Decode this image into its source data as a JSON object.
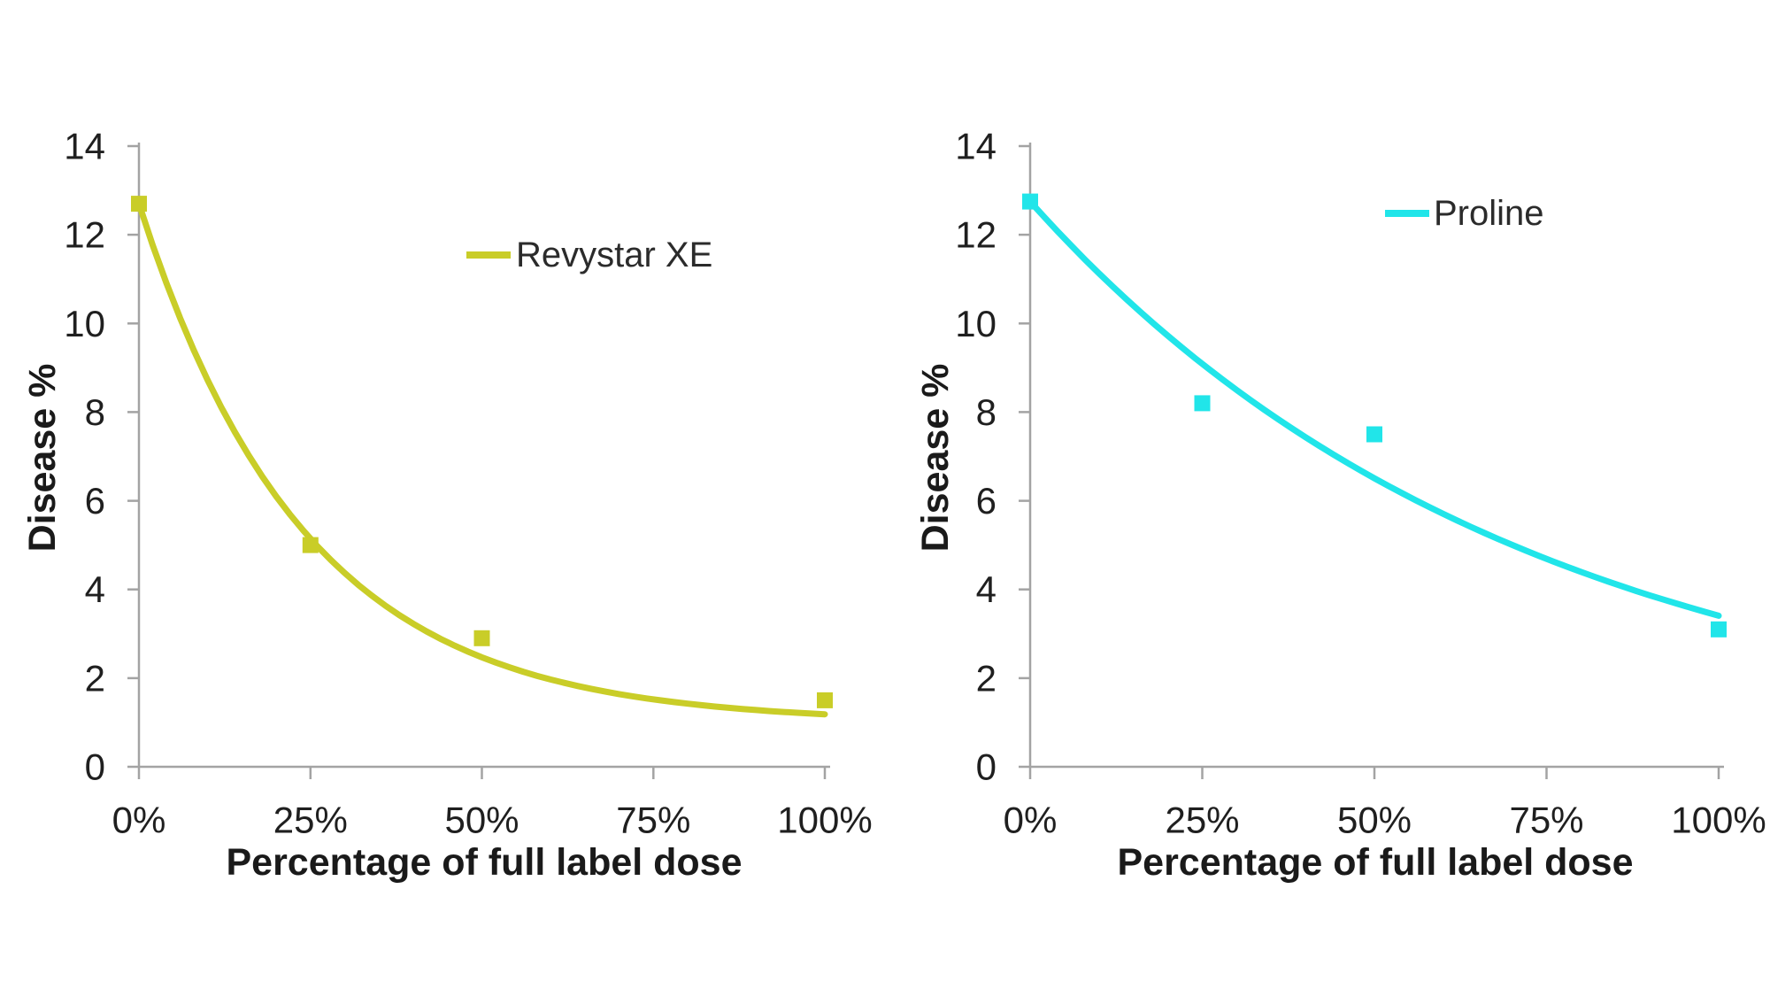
{
  "figure": {
    "background": "#ffffff",
    "description": "Two side-by-side dose-response scatter charts with exponential trend curves"
  },
  "chart_data": [
    {
      "id": "revystar-xe-chart",
      "type": "scatter",
      "title": "",
      "xlabel": "Percentage of full label dose",
      "ylabel": "Disease %",
      "ylim": [
        0,
        14
      ],
      "yticks": [
        0,
        2,
        4,
        6,
        8,
        10,
        12,
        14
      ],
      "xticks": [
        {
          "value": 0,
          "label": "0%"
        },
        {
          "value": 25,
          "label": "25%"
        },
        {
          "value": 50,
          "label": "50%"
        },
        {
          "value": 75,
          "label": "75%"
        },
        {
          "value": 100,
          "label": "100%"
        }
      ],
      "grid": false,
      "legend_position": "inside-top-right",
      "series": [
        {
          "name": "Revystar XE",
          "color": "#c9cd28",
          "marker": "square",
          "points": [
            {
              "x": 0,
              "y": 12.7
            },
            {
              "x": 25,
              "y": 5.0
            },
            {
              "x": 50,
              "y": 2.9
            },
            {
              "x": 100,
              "y": 1.5
            }
          ],
          "trendline": {
            "model": "exponential_decay",
            "formula": "y = c + a*exp(-b*x)",
            "a": 11.7,
            "b": 0.0415,
            "c": 1.0,
            "y_at_0": 12.7,
            "y_at_100": 1.2
          }
        }
      ]
    },
    {
      "id": "proline-chart",
      "type": "scatter",
      "title": "",
      "xlabel": "Percentage of full label dose",
      "ylabel": "Disease %",
      "ylim": [
        0,
        14
      ],
      "yticks": [
        0,
        2,
        4,
        6,
        8,
        10,
        12,
        14
      ],
      "xticks": [
        {
          "value": 0,
          "label": "0%"
        },
        {
          "value": 25,
          "label": "25%"
        },
        {
          "value": 50,
          "label": "50%"
        },
        {
          "value": 75,
          "label": "75%"
        },
        {
          "value": 100,
          "label": "100%"
        }
      ],
      "grid": false,
      "legend_position": "inside-top-right",
      "series": [
        {
          "name": "Proline",
          "color": "#21e5e9",
          "marker": "square",
          "points": [
            {
              "x": 0,
              "y": 12.75
            },
            {
              "x": 25,
              "y": 8.2
            },
            {
              "x": 50,
              "y": 7.5
            },
            {
              "x": 100,
              "y": 3.1
            }
          ],
          "trendline": {
            "model": "exponential_decay",
            "formula": "y = c + a*exp(-b*x)",
            "a": 12.4,
            "b": 0.014,
            "c": 0.35,
            "y_at_0": 12.75,
            "y_at_100": 3.4
          }
        }
      ]
    }
  ]
}
